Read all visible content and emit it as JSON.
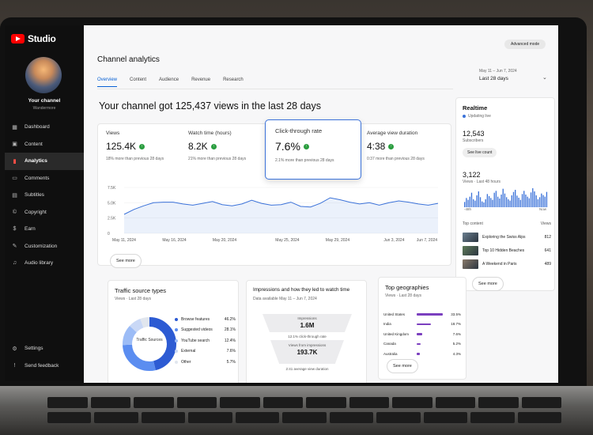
{
  "app": {
    "logo_text": "Studio"
  },
  "channel": {
    "name": "Your channel",
    "handle": "Wandermore"
  },
  "sidebar": {
    "items": [
      {
        "label": "Dashboard",
        "icon": "grid-icon",
        "glyph": "▦"
      },
      {
        "label": "Content",
        "icon": "video-icon",
        "glyph": "▣"
      },
      {
        "label": "Analytics",
        "icon": "bar-chart-icon",
        "glyph": "▮"
      },
      {
        "label": "Comments",
        "icon": "comment-icon",
        "glyph": "▭"
      },
      {
        "label": "Subtitles",
        "icon": "subtitles-icon",
        "glyph": "▤"
      },
      {
        "label": "Copyright",
        "icon": "copyright-icon",
        "glyph": "©"
      },
      {
        "label": "Earn",
        "icon": "dollar-icon",
        "glyph": "$"
      },
      {
        "label": "Customization",
        "icon": "brush-icon",
        "glyph": "✎"
      },
      {
        "label": "Audio library",
        "icon": "music-icon",
        "glyph": "♫"
      }
    ],
    "active_index": 2,
    "bottom": [
      {
        "label": "Settings",
        "icon": "gear-icon",
        "glyph": "⚙"
      },
      {
        "label": "Send feedback",
        "icon": "feedback-icon",
        "glyph": "!"
      }
    ]
  },
  "header": {
    "advanced_mode": "Advanced mode",
    "title": "Channel analytics",
    "tabs": [
      "Overview",
      "Content",
      "Audience",
      "Revenue",
      "Research"
    ],
    "date_range_small": "May 11 – Jun 7, 2024",
    "date_range": "Last 28 days"
  },
  "headline": "Your channel got 125,437 views in the last 28 days",
  "metrics": [
    {
      "label": "Views",
      "value": "125.4K",
      "sub": "18% more than previous 28 days"
    },
    {
      "label": "Watch time (hours)",
      "value": "8.2K",
      "sub": "21% more than previous 28 days"
    },
    {
      "label": "Click-through rate",
      "value": "7.6%",
      "sub": "2.1% more than previous 28 days"
    },
    {
      "label": "Average view duration",
      "value": "4:38",
      "sub": "0:37 more than previous 28 days"
    }
  ],
  "see_more": "See more",
  "chart_data": {
    "type": "area",
    "y_ticks": [
      "7.5K",
      "5.0K",
      "2.5K",
      "0"
    ],
    "ylim": [
      0,
      7500
    ],
    "x_ticks": [
      "May 11, 2024",
      "May 16, 2024",
      "May 20, 2024",
      "May 25, 2024",
      "May 29, 2024",
      "Jun 3, 2024",
      "Jun 7, 2024"
    ],
    "values": [
      3100,
      3900,
      4500,
      5000,
      5100,
      5100,
      4800,
      4600,
      4900,
      5200,
      4700,
      4500,
      4800,
      5400,
      4900,
      4600,
      4700,
      5100,
      4400,
      4300,
      4900,
      5800,
      5500,
      5100,
      4800,
      5000,
      4600,
      5000,
      5300,
      5100,
      4800,
      4600,
      4900
    ],
    "color": "#3b72d9"
  },
  "realtime": {
    "title": "Realtime",
    "status": "Updating live",
    "subscribers": "12,543",
    "subscribers_label": "Subscribers",
    "live_count_button": "See live count",
    "views": "3,122",
    "views_label": "Views · Last 48 hours",
    "bar_values": [
      20,
      35,
      28,
      40,
      55,
      30,
      25,
      45,
      60,
      38,
      22,
      18,
      30,
      50,
      42,
      35,
      28,
      55,
      62,
      40,
      33,
      48,
      70,
      52,
      38,
      30,
      25,
      45,
      58,
      66,
      44,
      36,
      28,
      50,
      62,
      48,
      40,
      34,
      56,
      72,
      60,
      45,
      30,
      38,
      52,
      46,
      40,
      58
    ],
    "axis_left": "-48h",
    "axis_right": "Now",
    "top_content_label": "Top content",
    "top_content_col": "Views",
    "top_content": [
      {
        "title": "Exploring the Swiss Alps",
        "views": "812",
        "color": "#6b7f8f"
      },
      {
        "title": "Top 10 Hidden Beaches",
        "views": "641",
        "color": "#5e7a58"
      },
      {
        "title": "A Weekend in Paris",
        "views": "489",
        "color": "#8a7a6a"
      }
    ]
  },
  "traffic": {
    "title": "Traffic source types",
    "subtitle": "Views · Last 28 days",
    "center_label": "Traffic Sources",
    "sources": [
      {
        "name": "Browse features",
        "value": "46.2%",
        "pct": 46.2,
        "color": "#2d5bd3"
      },
      {
        "name": "Suggested videos",
        "value": "28.1%",
        "pct": 28.1,
        "color": "#5b8df0"
      },
      {
        "name": "YouTube search",
        "value": "12.4%",
        "pct": 12.4,
        "color": "#9cbcf6"
      },
      {
        "name": "External",
        "value": "7.6%",
        "pct": 7.6,
        "color": "#c9d8f6"
      },
      {
        "name": "Other",
        "value": "5.7%",
        "pct": 5.7,
        "color": "#e1e6ee"
      }
    ]
  },
  "impressions": {
    "title": "Impressions and how they led to watch time",
    "subtitle": "Data available May 11 – Jun 7, 2024",
    "impressions_label": "Impressions",
    "impressions_value": "1.6M",
    "ctr_note": "12.1% click-through rate",
    "views_label": "Views from impressions",
    "views_value": "193.7K",
    "duration_note": "2:41 average view duration"
  },
  "geo": {
    "title": "Top geographies",
    "subtitle": "Views · Last 28 days",
    "rows": [
      {
        "name": "United States",
        "value": "33.5%",
        "pct": 33.5
      },
      {
        "name": "India",
        "value": "18.7%",
        "pct": 18.7
      },
      {
        "name": "United Kingdom",
        "value": "7.6%",
        "pct": 7.6
      },
      {
        "name": "Canada",
        "value": "5.2%",
        "pct": 5.2
      },
      {
        "name": "Australia",
        "value": "4.3%",
        "pct": 4.3
      }
    ]
  }
}
